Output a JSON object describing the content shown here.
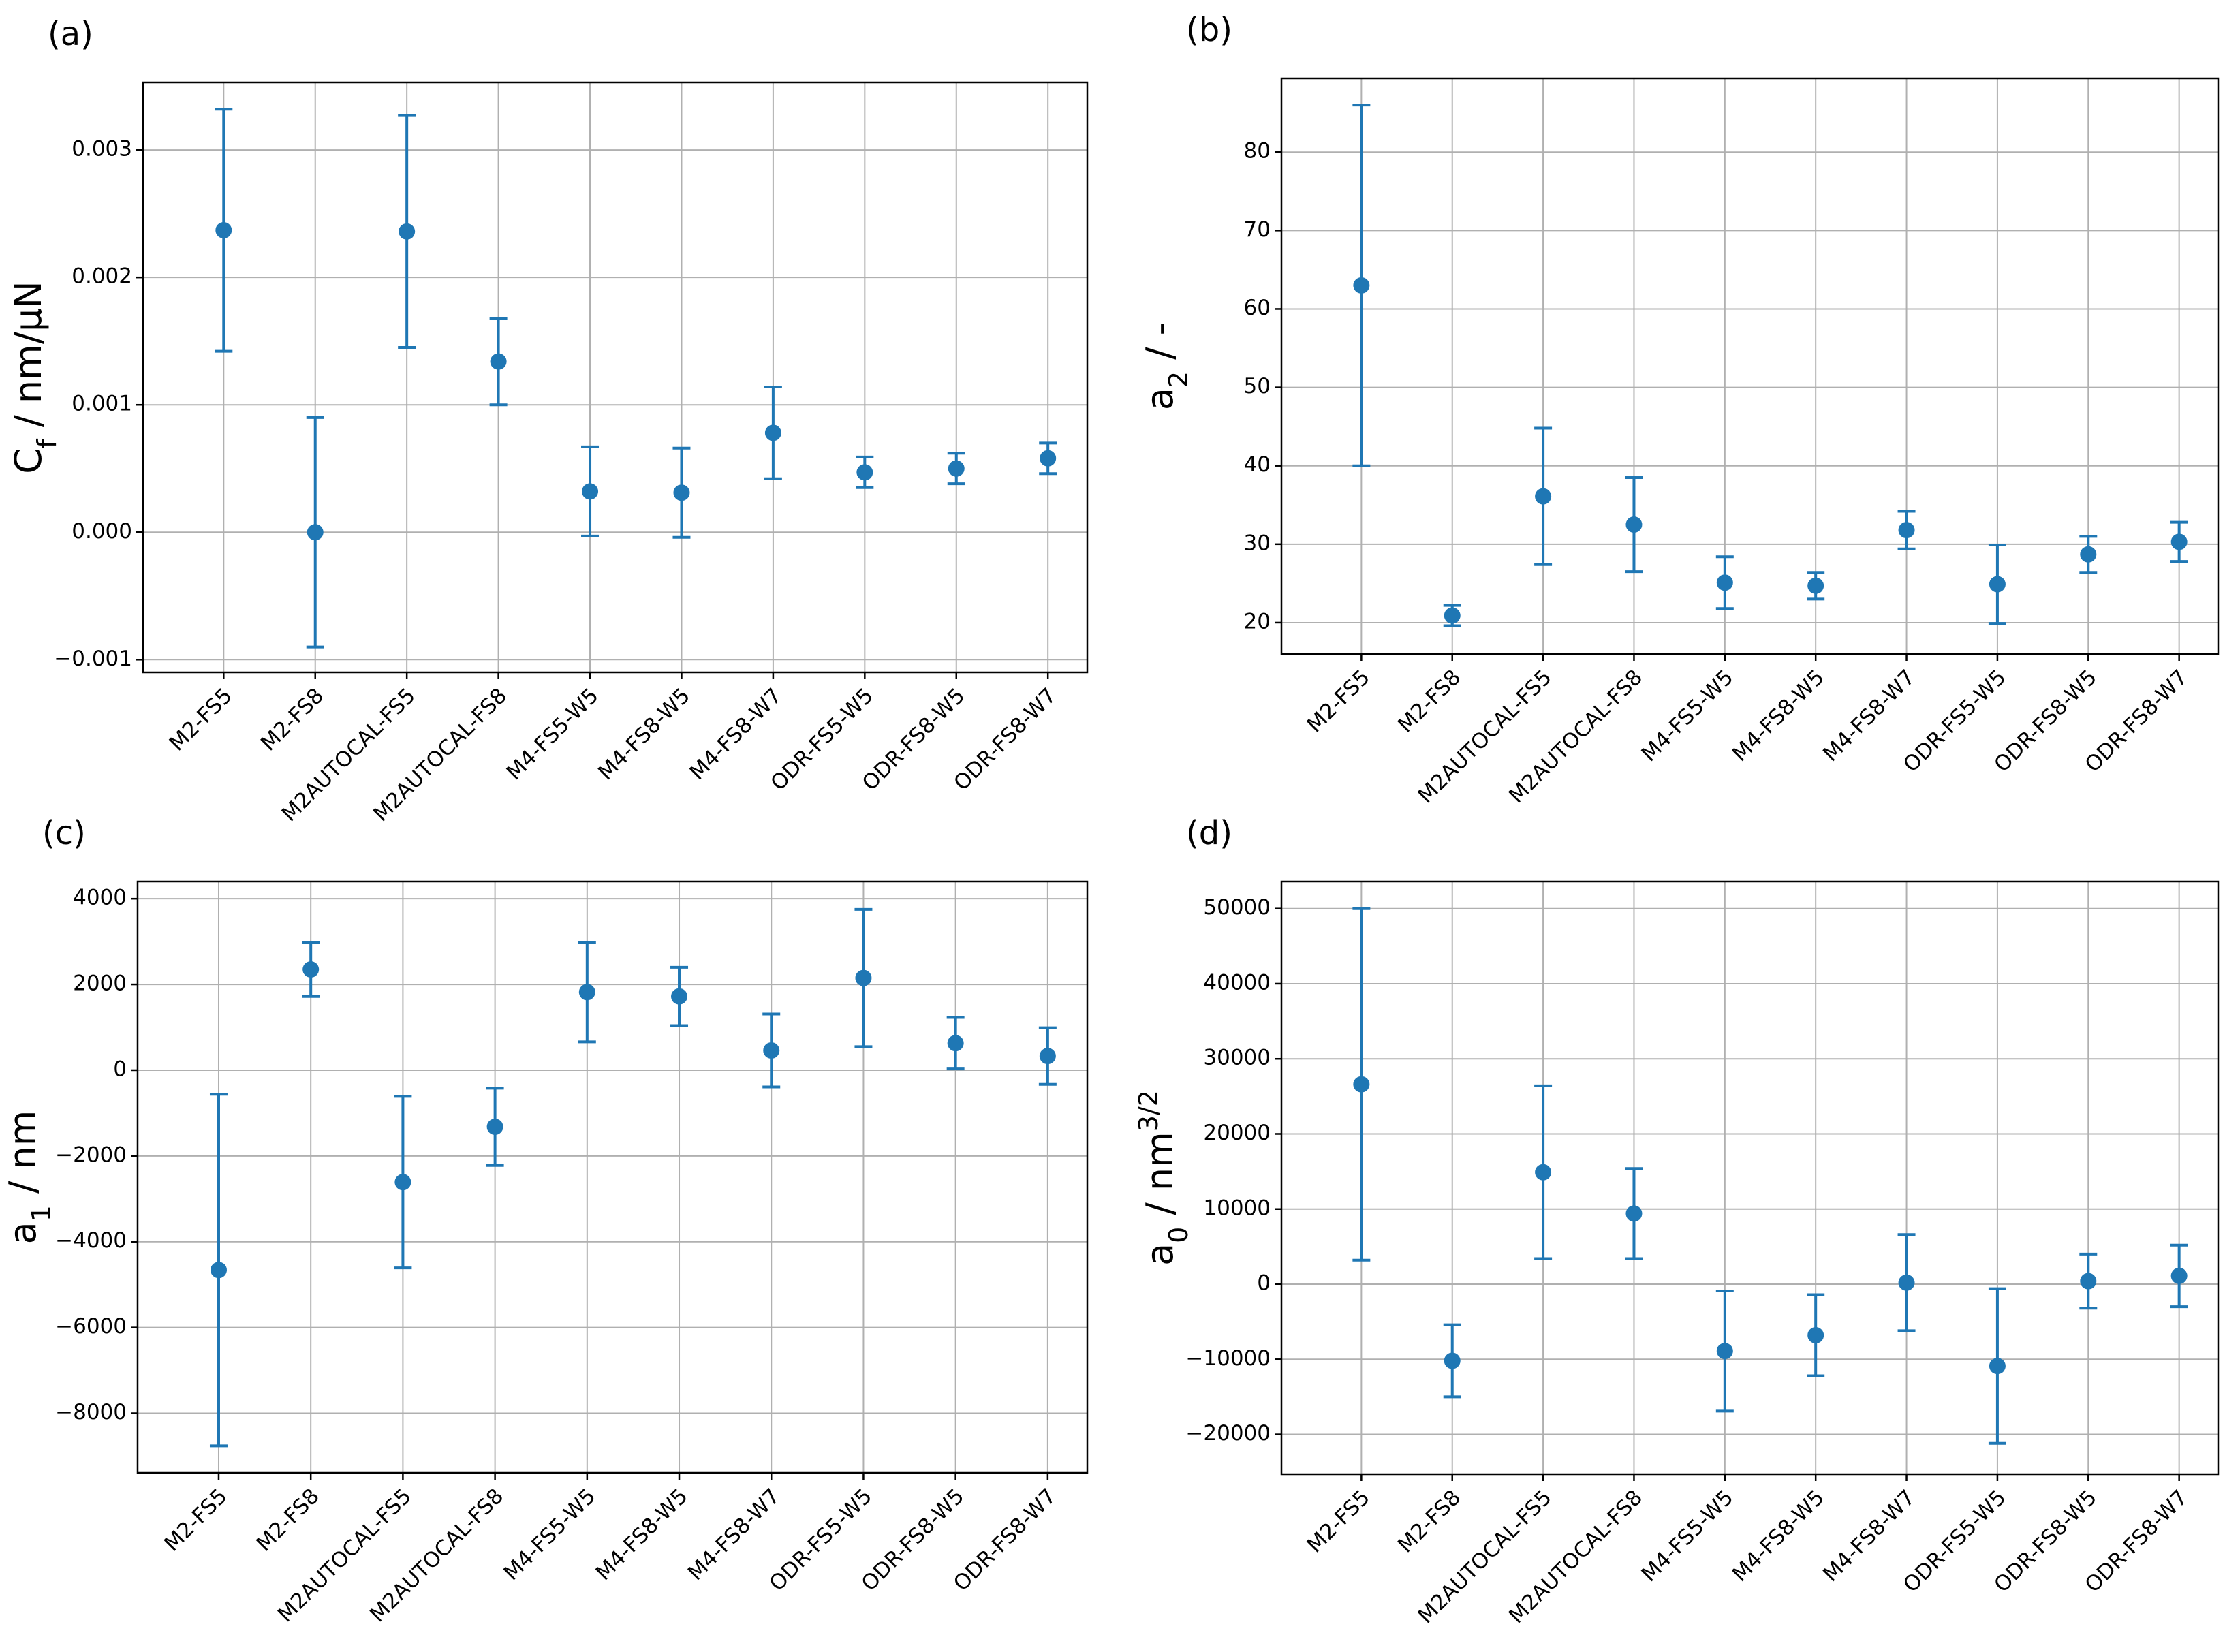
{
  "chart_data": [
    {
      "type": "errorbar",
      "label": "(a)",
      "ylabel": {
        "main": "C",
        "sub": "f",
        "unit": " / nm/μN"
      },
      "categories": [
        "M2-FS5",
        "M2-FS8",
        "M2AUTOCAL-FS5",
        "M2AUTOCAL-FS8",
        "M4-FS5-W5",
        "M4-FS8-W5",
        "M4-FS8-W7",
        "ODR-FS5-W5",
        "ODR-FS8-W5",
        "ODR-FS8-W7"
      ],
      "values": [
        0.00237,
        0,
        0.00236,
        0.00134,
        0.00032,
        0.00031,
        0.00078,
        0.00047,
        0.0005,
        0.00058
      ],
      "errors": [
        0.00095,
        0.0009,
        0.00091,
        0.00034,
        0.00035,
        0.00035,
        0.00036,
        0.00012,
        0.00012,
        0.00012
      ],
      "color": "#1f77b4",
      "grid": true,
      "ylim": [
        -0.0011,
        0.00353
      ],
      "yticks": [
        {
          "value": -0.001,
          "label": "−0.001"
        },
        {
          "value": 0,
          "label": "0.000"
        },
        0.001,
        0.002,
        0.003
      ]
    },
    {
      "type": "errorbar",
      "label": "(b)",
      "ylabel": {
        "main": "a",
        "sub": "2",
        "unit": " / -"
      },
      "categories": [
        "M2-FS5",
        "M2-FS8",
        "M2AUTOCAL-FS5",
        "M2AUTOCAL-FS8",
        "M4-FS5-W5",
        "M4-FS8-W5",
        "M4-FS8-W7",
        "ODR-FS5-W5",
        "ODR-FS8-W5",
        "ODR-FS8-W7"
      ],
      "values": [
        63.0,
        20.9,
        36.1,
        32.5,
        25.1,
        24.7,
        31.8,
        24.9,
        28.7,
        30.3
      ],
      "errors": [
        23,
        1.3,
        8.7,
        6,
        3.3,
        1.7,
        2.4,
        5,
        2.3,
        2.5
      ],
      "color": "#1f77b4",
      "grid": true,
      "ylim": [
        16,
        89.4
      ],
      "yticks": [
        20,
        30,
        40,
        50,
        60,
        70,
        80
      ]
    },
    {
      "type": "errorbar",
      "label": "(c)",
      "ylabel": {
        "main": "a",
        "sub": "1",
        "unit": " / nm"
      },
      "categories": [
        "M2-FS5",
        "M2-FS8",
        "M2AUTOCAL-FS5",
        "M2AUTOCAL-FS8",
        "M4-FS5-W5",
        "M4-FS8-W5",
        "M4-FS8-W7",
        "ODR-FS5-W5",
        "ODR-FS8-W5",
        "ODR-FS8-W7"
      ],
      "values": [
        -4660,
        2350,
        -2610,
        -1320,
        1820,
        1720,
        460,
        2150,
        630,
        330
      ],
      "errors": [
        4100,
        630,
        2000,
        900,
        1160,
        680,
        850,
        1600,
        600,
        660
      ],
      "color": "#1f77b4",
      "grid": true,
      "ylim": [
        -9390,
        4400
      ],
      "yticks": [
        {
          "value": -8000,
          "label": "−8000"
        },
        {
          "value": -6000,
          "label": "−6000"
        },
        {
          "value": -4000,
          "label": "−4000"
        },
        {
          "value": -2000,
          "label": "−2000"
        },
        0,
        2000,
        4000
      ]
    },
    {
      "type": "errorbar",
      "label": "(d)",
      "ylabel": {
        "main": "a",
        "sub": "0",
        "unit": " / nm",
        "sup": "3/2"
      },
      "categories": [
        "M2-FS5",
        "M2-FS8",
        "M2AUTOCAL-FS5",
        "M2AUTOCAL-FS8",
        "M4-FS5-W5",
        "M4-FS8-W5",
        "M4-FS8-W7",
        "ODR-FS5-W5",
        "ODR-FS8-W5",
        "ODR-FS8-W7"
      ],
      "values": [
        26600,
        -10200,
        14900,
        9400,
        -8900,
        -6800,
        200,
        -10900,
        400,
        1100
      ],
      "errors": [
        23400,
        4800,
        11500,
        6000,
        8000,
        5400,
        6400,
        10300,
        3600,
        4100
      ],
      "color": "#1f77b4",
      "grid": true,
      "ylim": [
        -25300,
        53600
      ],
      "yticks": [
        {
          "value": -20000,
          "label": "−20000"
        },
        {
          "value": -10000,
          "label": "−10000"
        },
        0,
        10000,
        20000,
        30000,
        40000,
        50000
      ]
    }
  ]
}
